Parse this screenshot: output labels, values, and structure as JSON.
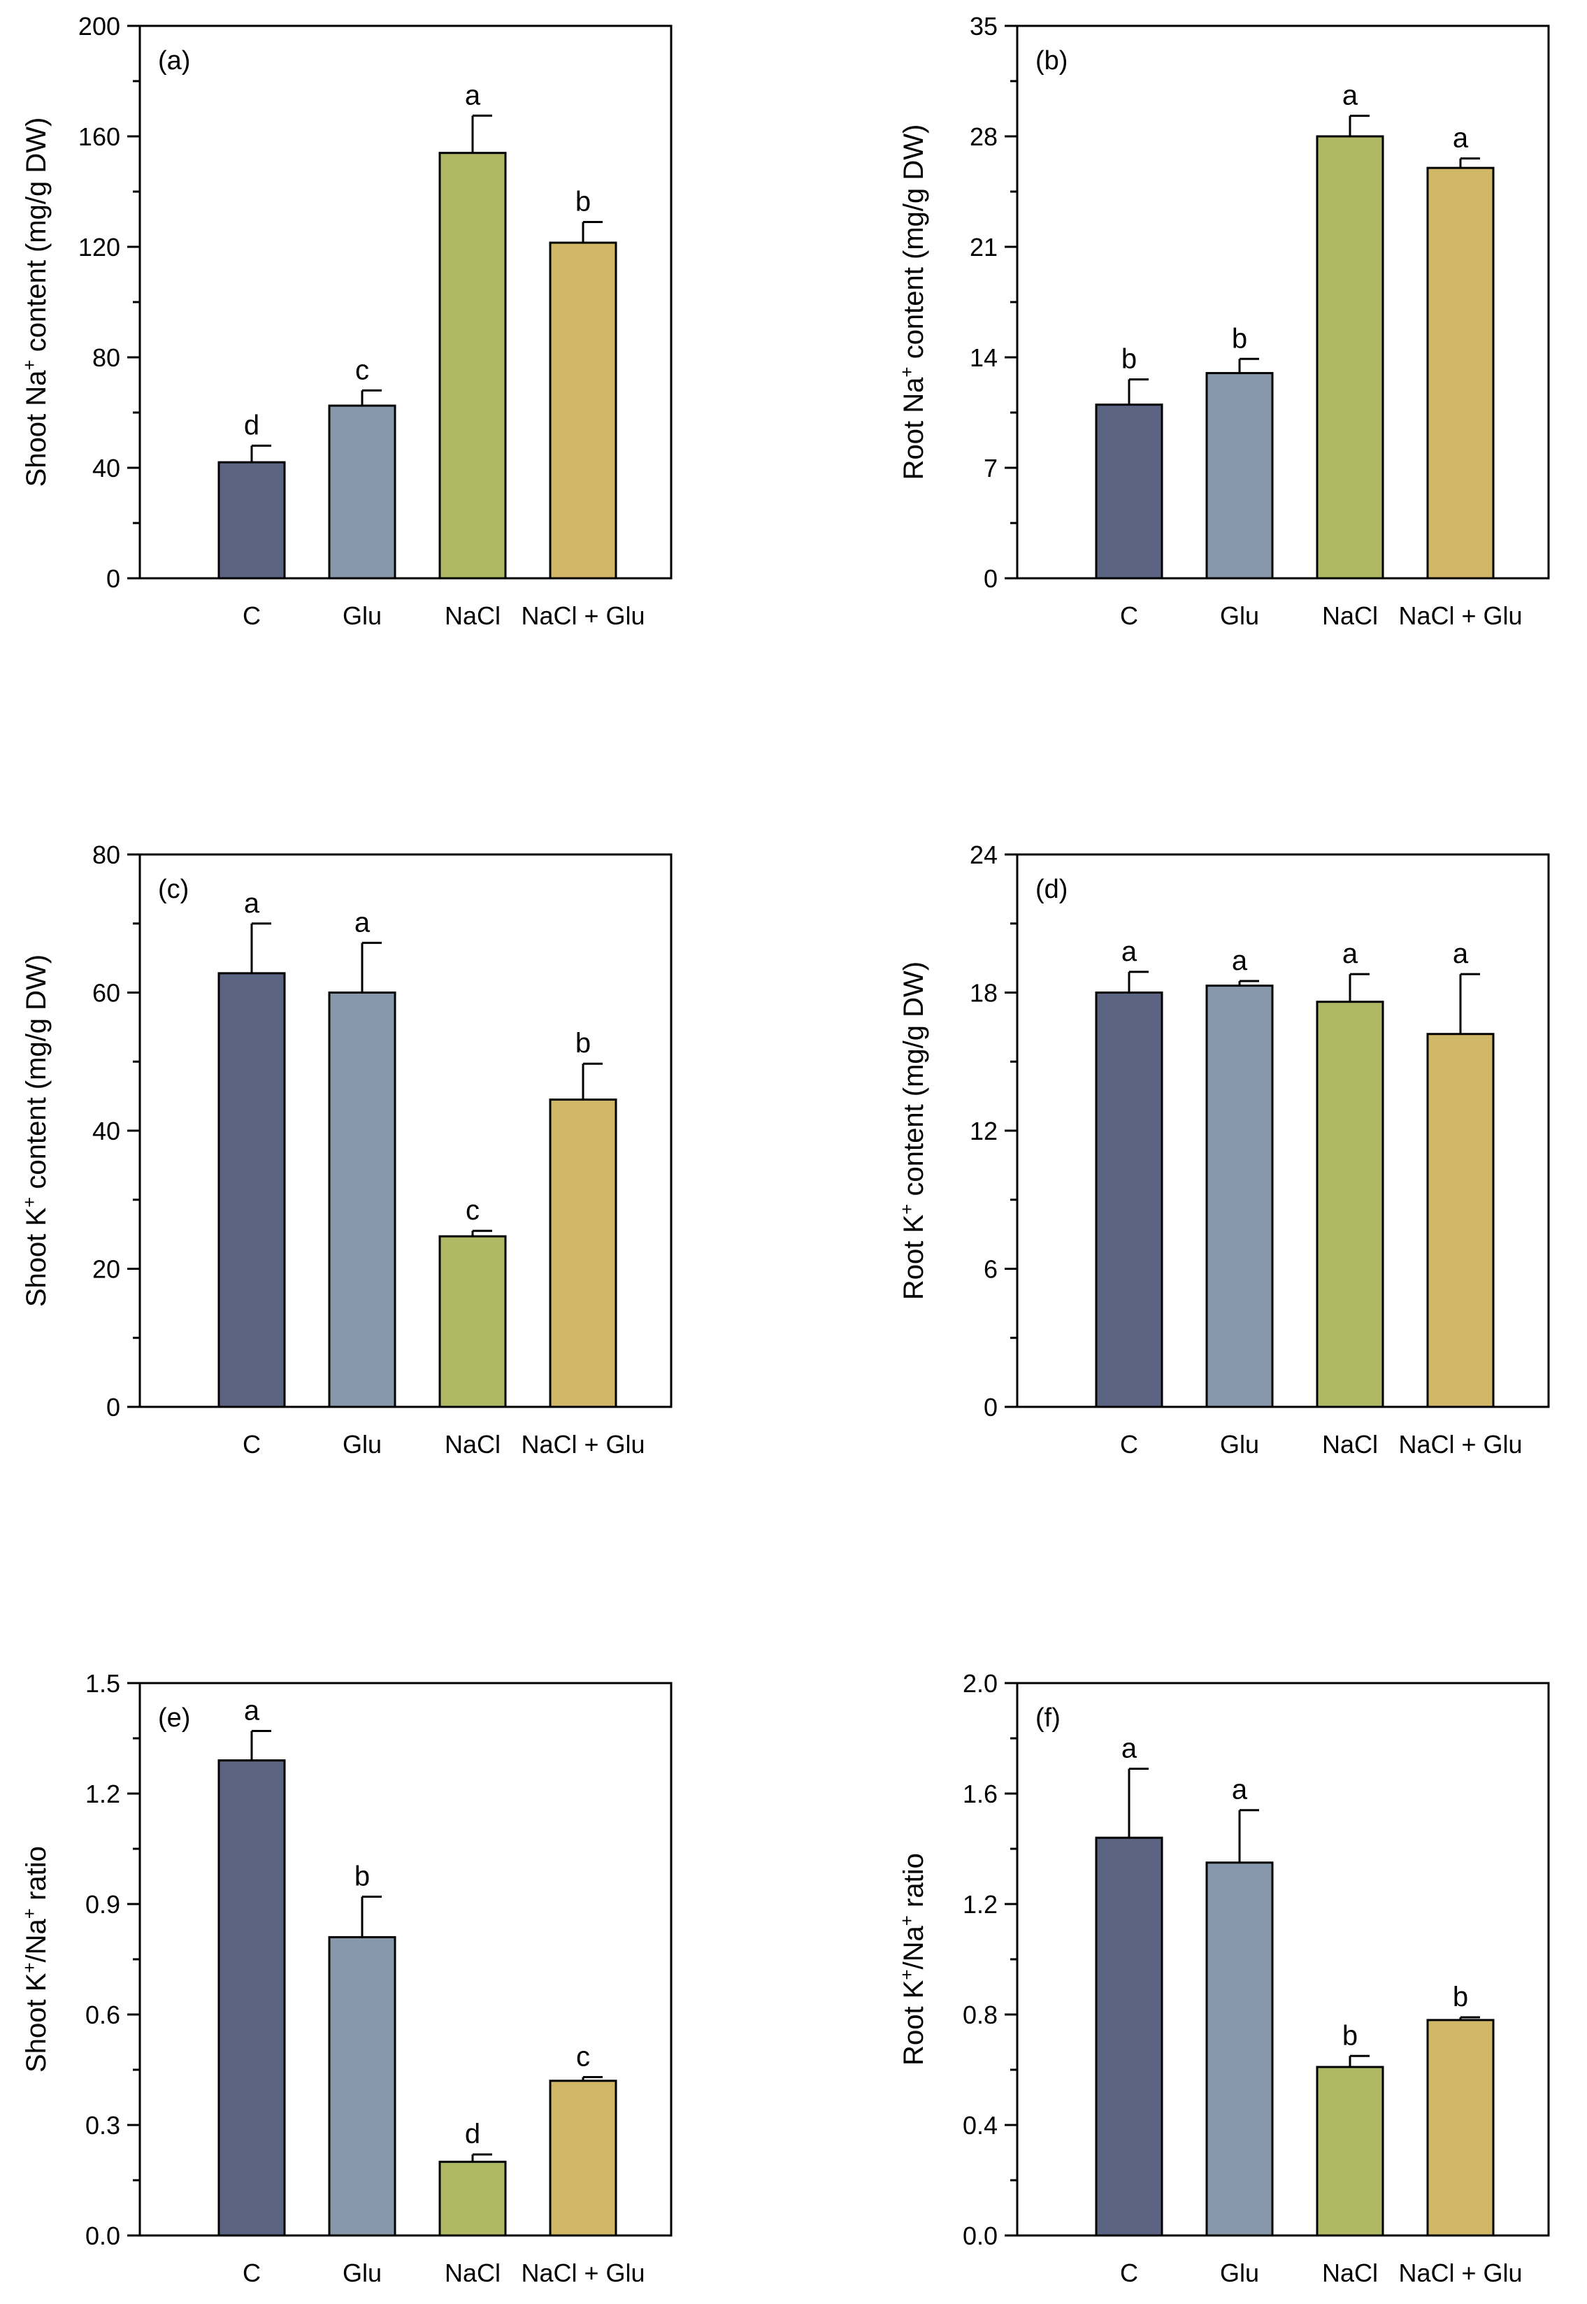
{
  "colors": {
    "bar_colors": [
      "#5c6483",
      "#8797ac",
      "#aeb865",
      "#d0b868"
    ],
    "axis": "#000000",
    "background": "#ffffff"
  },
  "chart_data": [
    {
      "type": "bar",
      "panel_label": "(a)",
      "ylabel_parts": [
        {
          "t": "Shoot Na"
        },
        {
          "t": "+",
          "sup": true
        },
        {
          "t": " content (mg/g DW)"
        }
      ],
      "categories": [
        "C",
        "Glu",
        "NaCl",
        "NaCl + Glu"
      ],
      "values": [
        42,
        62.5,
        154,
        121.5
      ],
      "errors": [
        6,
        5.5,
        13.5,
        7.5
      ],
      "letters": [
        "d",
        "c",
        "a",
        "b"
      ],
      "ylim": [
        0,
        200
      ],
      "yticks": [
        0,
        40,
        80,
        120,
        160,
        200
      ],
      "ytick_labels": [
        "0",
        "40",
        "80",
        "120",
        "160",
        "200"
      ],
      "minor_step": 20
    },
    {
      "type": "bar",
      "panel_label": "(b)",
      "ylabel_parts": [
        {
          "t": "Root Na"
        },
        {
          "t": "+",
          "sup": true
        },
        {
          "t": " content (mg/g DW)"
        }
      ],
      "categories": [
        "C",
        "Glu",
        "NaCl",
        "NaCl + Glu"
      ],
      "values": [
        11,
        13,
        28,
        26
      ],
      "errors": [
        1.6,
        0.9,
        1.3,
        0.6
      ],
      "letters": [
        "b",
        "b",
        "a",
        "a"
      ],
      "ylim": [
        0,
        35
      ],
      "yticks": [
        0,
        7,
        14,
        21,
        28,
        35
      ],
      "ytick_labels": [
        "0",
        "7",
        "14",
        "21",
        "28",
        "35"
      ],
      "minor_step": 3.5
    },
    {
      "type": "bar",
      "panel_label": "(c)",
      "ylabel_parts": [
        {
          "t": "Shoot K"
        },
        {
          "t": "+",
          "sup": true
        },
        {
          "t": " content (mg/g DW)"
        }
      ],
      "categories": [
        "C",
        "Glu",
        "NaCl",
        "NaCl + Glu"
      ],
      "values": [
        62.8,
        60,
        24.7,
        44.5
      ],
      "errors": [
        7.2,
        7.2,
        0.8,
        5.2
      ],
      "letters": [
        "a",
        "a",
        "c",
        "b"
      ],
      "ylim": [
        0,
        80
      ],
      "yticks": [
        0,
        20,
        40,
        60,
        80
      ],
      "ytick_labels": [
        "0",
        "20",
        "40",
        "60",
        "80"
      ],
      "minor_step": 10
    },
    {
      "type": "bar",
      "panel_label": "(d)",
      "ylabel_parts": [
        {
          "t": "Root K"
        },
        {
          "t": "+",
          "sup": true
        },
        {
          "t": " content (mg/g DW)"
        }
      ],
      "categories": [
        "C",
        "Glu",
        "NaCl",
        "NaCl + Glu"
      ],
      "values": [
        18,
        18.3,
        17.6,
        16.2
      ],
      "errors": [
        0.9,
        0.2,
        1.2,
        2.6
      ],
      "letters": [
        "a",
        "a",
        "a",
        "a"
      ],
      "ylim": [
        0,
        24
      ],
      "yticks": [
        0,
        6,
        12,
        18,
        24
      ],
      "ytick_labels": [
        "0",
        "6",
        "12",
        "18",
        "24"
      ],
      "minor_step": 3
    },
    {
      "type": "bar",
      "panel_label": "(e)",
      "ylabel_parts": [
        {
          "t": "Shoot K"
        },
        {
          "t": "+",
          "sup": true
        },
        {
          "t": "/Na"
        },
        {
          "t": "+",
          "sup": true
        },
        {
          "t": " ratio"
        }
      ],
      "categories": [
        "C",
        "Glu",
        "NaCl",
        "NaCl + Glu"
      ],
      "values": [
        1.29,
        0.81,
        0.2,
        0.42
      ],
      "errors": [
        0.08,
        0.11,
        0.02,
        0.01
      ],
      "letters": [
        "a",
        "b",
        "d",
        "c"
      ],
      "ylim": [
        0,
        1.5
      ],
      "yticks": [
        0,
        0.3,
        0.6,
        0.9,
        1.2,
        1.5
      ],
      "ytick_labels": [
        "0.0",
        "0.3",
        "0.6",
        "0.9",
        "1.2",
        "1.5"
      ],
      "minor_step": 0.15
    },
    {
      "type": "bar",
      "panel_label": "(f)",
      "ylabel_parts": [
        {
          "t": "Root K"
        },
        {
          "t": "+",
          "sup": true
        },
        {
          "t": "/Na"
        },
        {
          "t": "+",
          "sup": true
        },
        {
          "t": " ratio"
        }
      ],
      "categories": [
        "C",
        "Glu",
        "NaCl",
        "NaCl + Glu"
      ],
      "values": [
        1.44,
        1.35,
        0.61,
        0.78
      ],
      "errors": [
        0.25,
        0.19,
        0.04,
        0.01
      ],
      "letters": [
        "a",
        "a",
        "b",
        "b"
      ],
      "ylim": [
        0,
        2
      ],
      "yticks": [
        0,
        0.4,
        0.8,
        1.2,
        1.6,
        2
      ],
      "ytick_labels": [
        "0.0",
        "0.4",
        "0.8",
        "1.2",
        "1.6",
        "2.0"
      ],
      "minor_step": 0.2
    }
  ]
}
